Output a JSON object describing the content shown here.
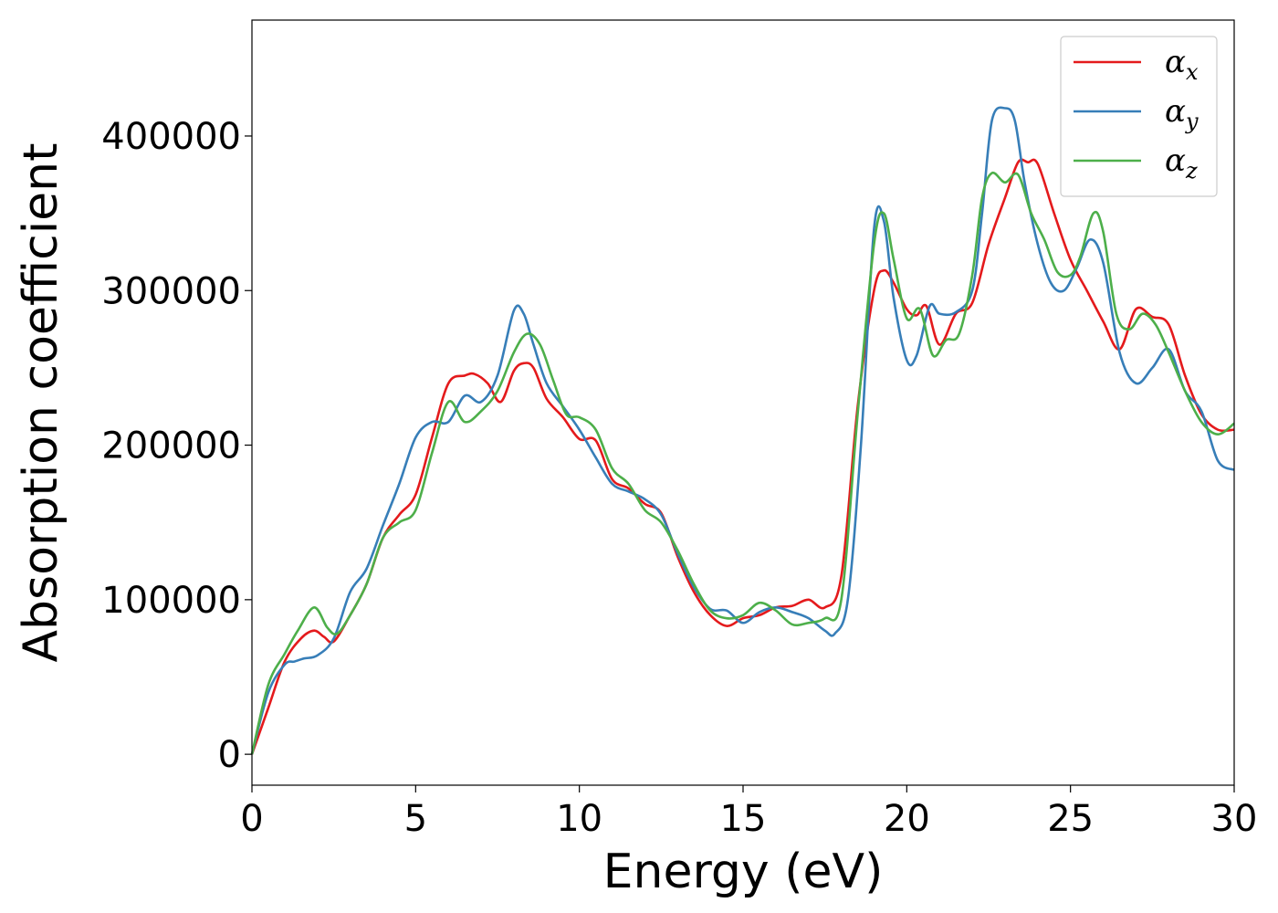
{
  "chart_data": {
    "type": "line",
    "xlabel": "Energy (eV)",
    "ylabel": "Absorption coefficient",
    "xlim": [
      0,
      30
    ],
    "ylim": [
      -20000,
      475000
    ],
    "xticks": [
      0,
      5,
      10,
      15,
      20,
      25,
      30
    ],
    "xtick_labels": [
      "0",
      "5",
      "10",
      "15",
      "20",
      "25",
      "30"
    ],
    "yticks": [
      0,
      100000,
      200000,
      300000,
      400000
    ],
    "ytick_labels": [
      "0",
      "100000",
      "200000",
      "300000",
      "400000"
    ],
    "grid": false,
    "legend_position": "top-right",
    "series": [
      {
        "name": "α",
        "name_sub": "x",
        "color": "#e41a1c",
        "x": [
          0,
          0.5,
          1,
          1.5,
          1.9,
          2.2,
          2.5,
          3,
          3.5,
          4,
          4.5,
          5,
          5.5,
          6,
          6.5,
          6.8,
          7.2,
          7.6,
          8,
          8.3,
          8.6,
          9,
          9.5,
          10,
          10.5,
          11,
          11.5,
          12,
          12.5,
          13,
          13.5,
          14,
          14.5,
          15,
          15.5,
          16,
          16.5,
          17,
          17.5,
          18,
          18.5,
          19,
          19.3,
          19.6,
          20,
          20.3,
          20.6,
          21,
          21.5,
          22,
          22.5,
          23,
          23.4,
          23.7,
          24,
          24.5,
          25,
          25.5,
          26,
          26.5,
          27,
          27.5,
          28,
          28.5,
          29,
          29.5,
          30
        ],
        "y": [
          0,
          30000,
          60000,
          75000,
          80000,
          76000,
          73000,
          90000,
          110000,
          140000,
          155000,
          168000,
          205000,
          240000,
          245000,
          246000,
          240000,
          228000,
          248000,
          253000,
          250000,
          230000,
          218000,
          204000,
          203000,
          178000,
          172000,
          162000,
          156000,
          128000,
          105000,
          90000,
          83000,
          88000,
          90000,
          95000,
          96000,
          100000,
          95000,
          115000,
          225000,
          300000,
          313000,
          305000,
          288000,
          284000,
          290000,
          265000,
          285000,
          292000,
          330000,
          360000,
          383000,
          383000,
          382000,
          350000,
          320000,
          300000,
          280000,
          262000,
          288000,
          283000,
          278000,
          245000,
          220000,
          210000,
          210000
        ]
      },
      {
        "name": "α",
        "name_sub": "y",
        "color": "#377eb8",
        "x": [
          0,
          0.5,
          1,
          1.3,
          1.6,
          2,
          2.5,
          3,
          3.5,
          4,
          4.5,
          5,
          5.5,
          6,
          6.5,
          7,
          7.5,
          8,
          8.3,
          8.6,
          9,
          9.5,
          10,
          10.5,
          11,
          11.5,
          12,
          12.5,
          13,
          13.5,
          14,
          14.5,
          15,
          15.5,
          16,
          16.5,
          17,
          17.5,
          17.8,
          18.2,
          18.6,
          19,
          19.3,
          19.6,
          20,
          20.3,
          20.7,
          21,
          21.5,
          22,
          22.3,
          22.6,
          23,
          23.3,
          23.6,
          24,
          24.4,
          24.8,
          25.2,
          25.6,
          26,
          26.5,
          27,
          27.5,
          28,
          28.5,
          29,
          29.5,
          30
        ],
        "y": [
          0,
          40000,
          58000,
          60000,
          62000,
          64000,
          75000,
          105000,
          120000,
          148000,
          175000,
          205000,
          215000,
          215000,
          232000,
          228000,
          245000,
          287000,
          285000,
          265000,
          240000,
          225000,
          210000,
          192000,
          175000,
          170000,
          165000,
          155000,
          130000,
          108000,
          94000,
          93000,
          85000,
          92000,
          95000,
          92000,
          88000,
          80000,
          78000,
          100000,
          200000,
          340000,
          345000,
          295000,
          255000,
          258000,
          290000,
          285000,
          286000,
          300000,
          350000,
          410000,
          418000,
          410000,
          370000,
          330000,
          305000,
          300000,
          315000,
          333000,
          318000,
          260000,
          240000,
          250000,
          262000,
          235000,
          222000,
          190000,
          184000
        ]
      },
      {
        "name": "α",
        "name_sub": "z",
        "color": "#4daf4a",
        "x": [
          0,
          0.5,
          1,
          1.4,
          1.9,
          2.3,
          2.6,
          3,
          3.5,
          4,
          4.5,
          5,
          5.5,
          6,
          6.5,
          7,
          7.5,
          8,
          8.4,
          8.8,
          9.2,
          9.6,
          10,
          10.5,
          11,
          11.5,
          12,
          12.5,
          13,
          13.5,
          14,
          14.5,
          15,
          15.5,
          16,
          16.5,
          17,
          17.5,
          18,
          18.5,
          19,
          19.3,
          19.6,
          20,
          20.4,
          20.8,
          21.2,
          21.6,
          22,
          22.3,
          22.6,
          23,
          23.4,
          23.8,
          24.2,
          24.6,
          25,
          25.3,
          25.7,
          26,
          26.4,
          26.8,
          27.2,
          27.6,
          28,
          28.5,
          29,
          29.5,
          30
        ],
        "y": [
          0,
          45000,
          65000,
          80000,
          95000,
          82000,
          78000,
          90000,
          110000,
          140000,
          150000,
          158000,
          195000,
          228000,
          215000,
          222000,
          235000,
          260000,
          272000,
          265000,
          242000,
          220000,
          218000,
          210000,
          185000,
          175000,
          158000,
          150000,
          132000,
          110000,
          93000,
          88000,
          90000,
          98000,
          93000,
          84000,
          85000,
          88000,
          100000,
          220000,
          330000,
          350000,
          320000,
          282000,
          288000,
          258000,
          268000,
          272000,
          310000,
          360000,
          376000,
          370000,
          375000,
          350000,
          333000,
          312000,
          310000,
          322000,
          350000,
          338000,
          285000,
          275000,
          285000,
          278000,
          260000,
          235000,
          215000,
          207000,
          214000
        ]
      }
    ]
  }
}
